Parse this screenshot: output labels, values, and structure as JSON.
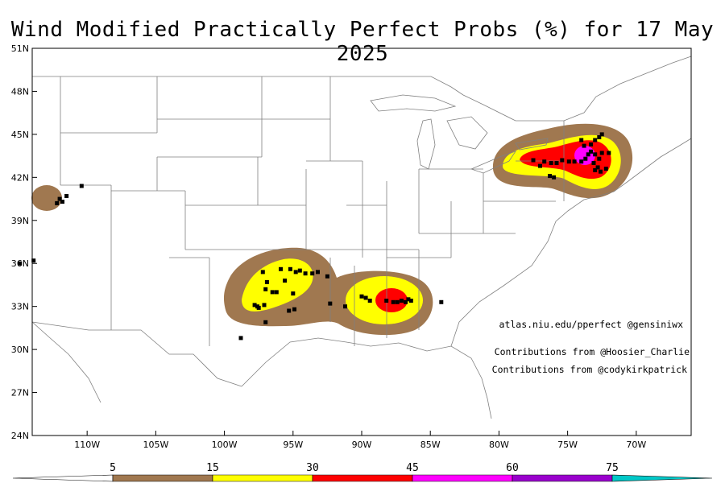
{
  "title": "Wind Modified Practically Perfect Probs (%) for 17 May 2025",
  "lat_labels": [
    "51N",
    "48N",
    "45N",
    "42N",
    "39N",
    "36N",
    "33N",
    "30N",
    "27N",
    "24N"
  ],
  "lon_labels": [
    "110W",
    "105W",
    "100W",
    "95W",
    "90W",
    "85W",
    "80W",
    "75W",
    "70W"
  ],
  "credits": {
    "site": "atlas.niu.edu/pperfect @gensiniwx",
    "contrib1": "Contributions from @Hoosier_Charlie",
    "contrib2": "Contributions from @codykirkpatrick"
  },
  "legend": {
    "levels": [
      "5",
      "15",
      "30",
      "45",
      "60",
      "75"
    ],
    "colors": [
      "#ffffff",
      "#a07850",
      "#ffff00",
      "#ff0000",
      "#ff00ff",
      "#9900cc",
      "#00c8c8"
    ]
  },
  "map_extent": {
    "lon": [
      -114,
      -66
    ],
    "lat": [
      24,
      51
    ]
  },
  "colors": {
    "brown": "#a07850",
    "yellow": "#ffff00",
    "red": "#ff0000",
    "magenta": "#ff00ff",
    "report": "#000000"
  },
  "report_points": [
    [
      -112.2,
      40.2
    ],
    [
      -112.0,
      40.5
    ],
    [
      -111.8,
      40.3
    ],
    [
      -111.5,
      40.7
    ],
    [
      -110.4,
      41.4
    ],
    [
      -113.9,
      36.2
    ],
    [
      -114.9,
      36.0
    ],
    [
      -97.2,
      35.4
    ],
    [
      -95.9,
      35.6
    ],
    [
      -95.2,
      35.6
    ],
    [
      -94.8,
      35.4
    ],
    [
      -94.5,
      35.5
    ],
    [
      -94.1,
      35.3
    ],
    [
      -93.6,
      35.3
    ],
    [
      -93.2,
      35.4
    ],
    [
      -92.5,
      35.1
    ],
    [
      -95.6,
      34.8
    ],
    [
      -96.9,
      34.7
    ],
    [
      -97.0,
      34.2
    ],
    [
      -96.5,
      34.0
    ],
    [
      -96.2,
      34.0
    ],
    [
      -95.0,
      33.9
    ],
    [
      -97.8,
      33.1
    ],
    [
      -97.6,
      33.0
    ],
    [
      -97.5,
      32.9
    ],
    [
      -97.1,
      33.1
    ],
    [
      -95.3,
      32.7
    ],
    [
      -94.9,
      32.8
    ],
    [
      -97.0,
      31.9
    ],
    [
      -98.8,
      30.8
    ],
    [
      -92.3,
      33.2
    ],
    [
      -91.2,
      33.0
    ],
    [
      -90.0,
      33.7
    ],
    [
      -89.7,
      33.6
    ],
    [
      -89.4,
      33.4
    ],
    [
      -88.2,
      33.4
    ],
    [
      -87.7,
      33.3
    ],
    [
      -87.4,
      33.3
    ],
    [
      -87.1,
      33.4
    ],
    [
      -86.8,
      33.3
    ],
    [
      -86.6,
      33.5
    ],
    [
      -86.4,
      33.4
    ],
    [
      -84.2,
      33.3
    ],
    [
      -77.0,
      42.8
    ],
    [
      -76.7,
      43.1
    ],
    [
      -76.2,
      43.0
    ],
    [
      -75.8,
      43.0
    ],
    [
      -75.4,
      43.2
    ],
    [
      -74.9,
      43.1
    ],
    [
      -74.5,
      43.1
    ],
    [
      -74.0,
      43.1
    ],
    [
      -73.7,
      43.3
    ],
    [
      -73.5,
      43.6
    ],
    [
      -73.3,
      44.3
    ],
    [
      -73.0,
      44.6
    ],
    [
      -72.7,
      44.8
    ],
    [
      -74.0,
      44.6
    ],
    [
      -73.8,
      44.2
    ],
    [
      -73.3,
      43.8
    ],
    [
      -73.0,
      43.6
    ],
    [
      -72.7,
      43.3
    ],
    [
      -72.5,
      43.7
    ],
    [
      -72.0,
      43.7
    ],
    [
      -73.1,
      43.0
    ],
    [
      -72.8,
      42.7
    ],
    [
      -73.0,
      42.5
    ],
    [
      -72.6,
      42.4
    ],
    [
      -72.2,
      42.6
    ],
    [
      -76.3,
      42.1
    ],
    [
      -76.0,
      42.0
    ],
    [
      -72.5,
      45.0
    ],
    [
      -77.5,
      43.2
    ]
  ]
}
